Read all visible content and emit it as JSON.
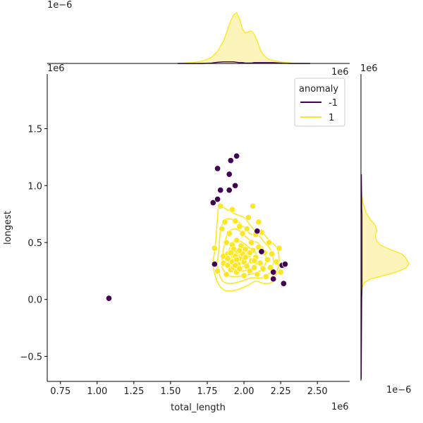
{
  "chart_data": {
    "type": "scatter",
    "subtype": "jointplot",
    "xlabel": "total_length",
    "ylabel": "longest",
    "x_offset_label": "1e6",
    "y_offset_label": "1e6",
    "top_marginal_offset_label": "1e−6",
    "right_marginal_offset_label": "1e−6",
    "top_marginal_top_right_label": "1e6",
    "right_marginal_top_label": "1e6",
    "xlim": [
      0.66,
      2.72
    ],
    "ylim": [
      -0.72,
      1.98
    ],
    "xticks": [
      0.75,
      1.0,
      1.25,
      1.5,
      1.75,
      2.0,
      2.25,
      2.5
    ],
    "xtick_labels": [
      "0.75",
      "1.00",
      "1.25",
      "1.50",
      "1.75",
      "2.00",
      "2.25",
      "2.50"
    ],
    "yticks": [
      -0.5,
      0.0,
      0.5,
      1.0,
      1.5
    ],
    "ytick_labels": [
      "−0.5",
      "0.0",
      "0.5",
      "1.0",
      "1.5"
    ],
    "legend": {
      "title": "anomaly",
      "placement": "top-right",
      "entries": [
        {
          "label": "-1",
          "color": "#440154"
        },
        {
          "label": "1",
          "color": "#fde725"
        }
      ]
    },
    "colors": {
      "anomaly_neg": "#440154",
      "anomaly_pos": "#fde725",
      "kde_fill": "#fdf3b4"
    },
    "series": [
      {
        "name": "-1",
        "color": "#440154",
        "points": [
          [
            1.08,
            0.01
          ],
          [
            1.79,
            0.85
          ],
          [
            1.8,
            0.31
          ],
          [
            1.82,
            0.88
          ],
          [
            1.82,
            1.15
          ],
          [
            1.84,
            0.96
          ],
          [
            1.9,
            1.1
          ],
          [
            1.9,
            0.96
          ],
          [
            1.91,
            1.22
          ],
          [
            1.94,
            1.0
          ],
          [
            1.95,
            1.26
          ],
          [
            2.09,
            0.6
          ],
          [
            2.12,
            0.42
          ],
          [
            2.2,
            0.24
          ],
          [
            2.2,
            0.18
          ],
          [
            2.26,
            0.3
          ],
          [
            2.27,
            0.14
          ],
          [
            2.28,
            0.31
          ]
        ]
      },
      {
        "name": "1",
        "color": "#fde725",
        "points": [
          [
            1.8,
            0.45
          ],
          [
            1.82,
            0.25
          ],
          [
            1.84,
            0.82
          ],
          [
            1.85,
            0.62
          ],
          [
            1.86,
            0.38
          ],
          [
            1.86,
            0.32
          ],
          [
            1.87,
            0.68
          ],
          [
            1.88,
            0.5
          ],
          [
            1.88,
            0.22
          ],
          [
            1.89,
            0.4
          ],
          [
            1.89,
            0.3
          ],
          [
            1.9,
            0.58
          ],
          [
            1.9,
            0.35
          ],
          [
            1.91,
            0.26
          ],
          [
            1.92,
            0.79
          ],
          [
            1.92,
            0.48
          ],
          [
            1.92,
            0.33
          ],
          [
            1.93,
            0.44
          ],
          [
            1.93,
            0.28
          ],
          [
            1.94,
            0.69
          ],
          [
            1.94,
            0.38
          ],
          [
            1.95,
            0.24
          ],
          [
            1.95,
            0.52
          ],
          [
            1.96,
            0.31
          ],
          [
            1.96,
            0.42
          ],
          [
            1.97,
            0.64
          ],
          [
            1.97,
            0.27
          ],
          [
            1.98,
            0.47
          ],
          [
            1.98,
            0.36
          ],
          [
            1.99,
            0.58
          ],
          [
            2.0,
            0.33
          ],
          [
            2.0,
            0.21
          ],
          [
            2.01,
            0.44
          ],
          [
            2.02,
            0.62
          ],
          [
            2.02,
            0.29
          ],
          [
            2.03,
            0.72
          ],
          [
            2.03,
            0.39
          ],
          [
            2.04,
            0.25
          ],
          [
            2.05,
            0.5
          ],
          [
            2.05,
            0.34
          ],
          [
            2.06,
            0.82
          ],
          [
            2.06,
            0.43
          ],
          [
            2.07,
            0.28
          ],
          [
            2.08,
            0.57
          ],
          [
            2.08,
            0.37
          ],
          [
            2.09,
            0.22
          ],
          [
            2.1,
            0.68
          ],
          [
            2.1,
            0.46
          ],
          [
            2.11,
            0.32
          ],
          [
            2.12,
            0.59
          ],
          [
            2.13,
            0.27
          ],
          [
            2.14,
            0.41
          ],
          [
            2.15,
            0.2
          ],
          [
            2.16,
            0.35
          ],
          [
            2.17,
            0.5
          ],
          [
            2.18,
            0.28
          ],
          [
            2.19,
            0.4
          ],
          [
            2.2,
            0.19
          ],
          [
            2.22,
            0.33
          ],
          [
            2.24,
            0.45
          ],
          [
            2.25,
            0.24
          ],
          [
            1.91,
            0.41
          ],
          [
            1.95,
            0.35
          ],
          [
            1.99,
            0.4
          ],
          [
            2.01,
            0.37
          ],
          [
            1.94,
            0.3
          ],
          [
            1.97,
            0.43
          ],
          [
            2.04,
            0.41
          ],
          [
            1.89,
            0.36
          ],
          [
            2.07,
            0.34
          ]
        ]
      }
    ],
    "kde_contours": [
      [
        [
          1.79,
          0.3
        ],
        [
          1.8,
          0.42
        ],
        [
          1.81,
          0.55
        ],
        [
          1.82,
          0.72
        ],
        [
          1.83,
          0.83
        ],
        [
          1.87,
          0.8
        ],
        [
          1.94,
          0.75
        ],
        [
          2.0,
          0.72
        ],
        [
          2.05,
          0.64
        ],
        [
          2.08,
          0.6
        ],
        [
          2.13,
          0.58
        ],
        [
          2.17,
          0.52
        ],
        [
          2.22,
          0.46
        ],
        [
          2.24,
          0.36
        ],
        [
          2.23,
          0.27
        ],
        [
          2.2,
          0.16
        ],
        [
          2.14,
          0.14
        ],
        [
          2.08,
          0.16
        ],
        [
          2.02,
          0.12
        ],
        [
          1.94,
          0.08
        ],
        [
          1.87,
          0.08
        ],
        [
          1.82,
          0.15
        ]
      ],
      [
        [
          1.82,
          0.3
        ],
        [
          1.83,
          0.45
        ],
        [
          1.84,
          0.6
        ],
        [
          1.87,
          0.7
        ],
        [
          1.93,
          0.7
        ],
        [
          1.98,
          0.66
        ],
        [
          2.04,
          0.58
        ],
        [
          2.1,
          0.56
        ],
        [
          2.14,
          0.5
        ],
        [
          2.18,
          0.44
        ],
        [
          2.2,
          0.34
        ],
        [
          2.18,
          0.24
        ],
        [
          2.12,
          0.19
        ],
        [
          2.05,
          0.19
        ],
        [
          1.98,
          0.16
        ],
        [
          1.91,
          0.14
        ],
        [
          1.85,
          0.17
        ]
      ],
      [
        [
          1.85,
          0.3
        ],
        [
          1.86,
          0.44
        ],
        [
          1.89,
          0.58
        ],
        [
          1.94,
          0.62
        ],
        [
          1.99,
          0.58
        ],
        [
          2.04,
          0.52
        ],
        [
          2.09,
          0.5
        ],
        [
          2.13,
          0.45
        ],
        [
          2.15,
          0.36
        ],
        [
          2.13,
          0.27
        ],
        [
          2.07,
          0.23
        ],
        [
          2.0,
          0.21
        ],
        [
          1.93,
          0.2
        ],
        [
          1.88,
          0.22
        ]
      ],
      [
        [
          1.88,
          0.31
        ],
        [
          1.9,
          0.44
        ],
        [
          1.94,
          0.52
        ],
        [
          1.99,
          0.5
        ],
        [
          2.04,
          0.45
        ],
        [
          2.08,
          0.41
        ],
        [
          2.09,
          0.33
        ],
        [
          2.05,
          0.27
        ],
        [
          1.98,
          0.25
        ],
        [
          1.92,
          0.26
        ]
      ],
      [
        [
          1.91,
          0.33
        ],
        [
          1.93,
          0.42
        ],
        [
          1.98,
          0.44
        ],
        [
          2.02,
          0.4
        ],
        [
          2.04,
          0.34
        ],
        [
          2.0,
          0.29
        ],
        [
          1.94,
          0.29
        ]
      ],
      [
        [
          1.95,
          0.34
        ],
        [
          1.97,
          0.39
        ],
        [
          2.0,
          0.38
        ],
        [
          2.01,
          0.34
        ],
        [
          1.98,
          0.32
        ]
      ],
      [
        [
          2.09,
          0.62
        ],
        [
          2.11,
          0.6
        ],
        [
          2.1,
          0.57
        ],
        [
          2.08,
          0.58
        ]
      ]
    ],
    "marginal_x": {
      "x": [
        1.55,
        1.65,
        1.72,
        1.78,
        1.82,
        1.86,
        1.89,
        1.91,
        1.93,
        1.95,
        1.97,
        1.99,
        2.01,
        2.03,
        2.05,
        2.07,
        2.09,
        2.11,
        2.13,
        2.16,
        2.2,
        2.25,
        2.32,
        2.45
      ],
      "density_anomaly_pos": [
        0.0,
        0.02,
        0.06,
        0.15,
        0.3,
        0.55,
        0.85,
        1.05,
        1.2,
        1.25,
        1.1,
        0.85,
        0.75,
        0.78,
        0.8,
        0.72,
        0.55,
        0.35,
        0.22,
        0.12,
        0.07,
        0.04,
        0.01,
        0.0
      ],
      "density_anomaly_neg": [
        0.0,
        0.0,
        0.0,
        0.01,
        0.03,
        0.04,
        0.04,
        0.04,
        0.04,
        0.03,
        0.02,
        0.02,
        0.01,
        0.01,
        0.01,
        0.02,
        0.02,
        0.02,
        0.02,
        0.02,
        0.02,
        0.01,
        0.0,
        0.0
      ]
    },
    "marginal_y": {
      "y": [
        -0.7,
        0.0,
        0.1,
        0.15,
        0.18,
        0.2,
        0.22,
        0.25,
        0.28,
        0.31,
        0.34,
        0.37,
        0.4,
        0.44,
        0.48,
        0.52,
        0.56,
        0.6,
        0.65,
        0.7,
        0.75,
        0.8,
        0.85,
        0.95,
        1.1
      ],
      "density_anomaly_pos": [
        0.0,
        0.0,
        0.02,
        0.08,
        0.2,
        0.38,
        0.58,
        0.8,
        0.95,
        1.0,
        0.97,
        0.92,
        0.85,
        0.6,
        0.4,
        0.32,
        0.3,
        0.33,
        0.3,
        0.2,
        0.12,
        0.08,
        0.04,
        0.01,
        0.0
      ],
      "density_anomaly_neg": [
        0.005,
        0.015,
        0.02,
        0.02,
        0.02,
        0.02,
        0.02,
        0.02,
        0.02,
        0.02,
        0.02,
        0.02,
        0.02,
        0.02,
        0.02,
        0.02,
        0.02,
        0.02,
        0.02,
        0.02,
        0.02,
        0.015,
        0.015,
        0.012,
        0.008
      ]
    }
  }
}
